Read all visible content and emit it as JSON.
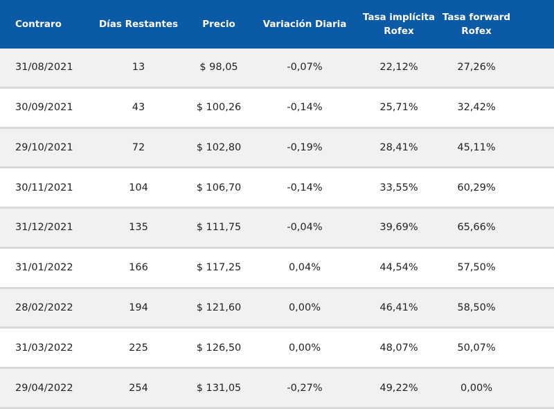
{
  "table": {
    "header": [
      [
        "Contraro"
      ],
      [
        "Días Restantes"
      ],
      [
        "Precio"
      ],
      [
        "Variación Diaria"
      ],
      [
        "Tasa implícita",
        "Rofex"
      ],
      [
        "Tasa forward",
        "Rofex"
      ]
    ],
    "rows": [
      [
        "31/08/2021",
        "13",
        "$ 98,05",
        "-0,07%",
        "22,12%",
        "27,26%"
      ],
      [
        "30/09/2021",
        "43",
        "$ 100,26",
        "-0,14%",
        "25,71%",
        "32,42%"
      ],
      [
        "29/10/2021",
        "72",
        "$ 102,80",
        "-0,19%",
        "28,41%",
        "45,11%"
      ],
      [
        "30/11/2021",
        "104",
        "$ 106,70",
        "-0,14%",
        "33,55%",
        "60,29%"
      ],
      [
        "31/12/2021",
        "135",
        "$ 111,75",
        "-0,04%",
        "39,69%",
        "65,66%"
      ],
      [
        "31/01/2022",
        "166",
        "$ 117,25",
        "0,04%",
        "44,54%",
        "57,50%"
      ],
      [
        "28/02/2022",
        "194",
        "$ 121,60",
        "0,00%",
        "46,41%",
        "58,50%"
      ],
      [
        "31/03/2022",
        "225",
        "$ 126,50",
        "0,00%",
        "48,07%",
        "50,07%"
      ],
      [
        "29/04/2022",
        "254",
        "$ 131,05",
        "-0,27%",
        "49,22%",
        "0,00%"
      ]
    ]
  }
}
